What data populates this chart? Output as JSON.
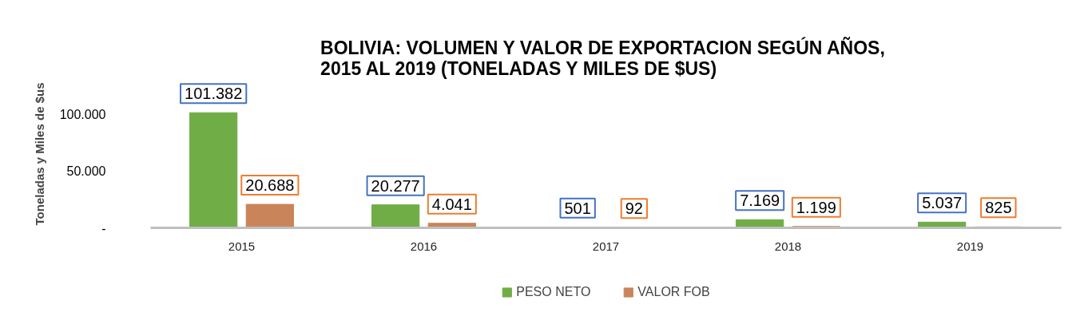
{
  "chart_data": {
    "type": "bar",
    "title": "BOLIVIA:  VOLUMEN Y VALOR DE EXPORTACION SEGÚN AÑOS,\n2015 AL 2019 (TONELADAS Y MILES DE $US)",
    "ylabel": "Toneladas y Miles de $us",
    "categories": [
      "2015",
      "2016",
      "2017",
      "2018",
      "2019"
    ],
    "series": [
      {
        "name": "PESO NETO",
        "color": "#70ad47",
        "values": [
          101382,
          20277,
          501,
          7169,
          5037
        ],
        "value_labels": [
          "101.382",
          "20.277",
          "501",
          "7.169",
          "5.037"
        ]
      },
      {
        "name": "VALOR FOB",
        "color": "#c9845a",
        "values": [
          20688,
          4041,
          92,
          1199,
          825
        ],
        "value_labels": [
          "20.688",
          "4.041",
          "92",
          "1.199",
          "825"
        ]
      }
    ],
    "ylim": [
      0,
      130000
    ],
    "yticks": [
      {
        "value": 0,
        "label": "-"
      },
      {
        "value": 50000,
        "label": "50.000"
      },
      {
        "value": 100000,
        "label": "100.000"
      }
    ],
    "legend": "bottom"
  }
}
